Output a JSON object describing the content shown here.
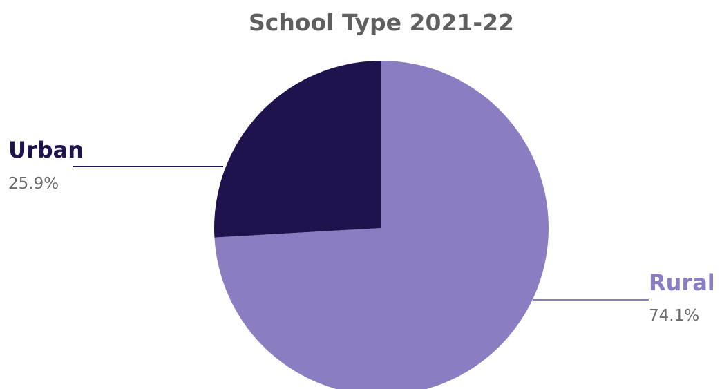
{
  "chart_data": {
    "type": "pie",
    "title": "School Type 2021-22",
    "slices": [
      {
        "label": "Rural",
        "value": 74.1,
        "value_label": "74.1%",
        "color": "#8c7cc1"
      },
      {
        "label": "Urban",
        "value": 25.9,
        "value_label": "25.9%",
        "color": "#20124d"
      }
    ],
    "start_angle_deg": 0,
    "direction": "clockwise",
    "legend": "none"
  }
}
